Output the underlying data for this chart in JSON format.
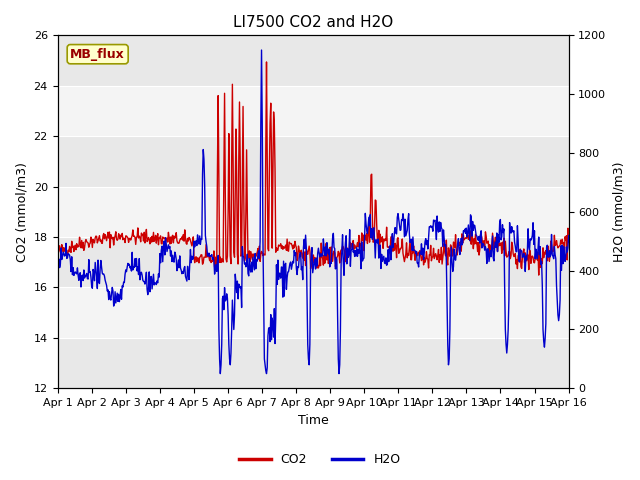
{
  "title": "LI7500 CO2 and H2O",
  "xlabel": "Time",
  "ylabel_left": "CO2 (mmol/m3)",
  "ylabel_right": "H2O (mmol/m3)",
  "co2_ylim": [
    12,
    26
  ],
  "h2o_ylim": [
    0,
    1200
  ],
  "co2_color": "#cc0000",
  "h2o_color": "#0000cc",
  "co2_linewidth": 1.0,
  "h2o_linewidth": 1.0,
  "title_fontsize": 11,
  "label_fontsize": 9,
  "tick_fontsize": 8,
  "legend_fontsize": 9,
  "mb_flux_label": "MB_flux",
  "mb_flux_facecolor": "#ffffcc",
  "mb_flux_edgecolor": "#999900",
  "mb_flux_textcolor": "#990000",
  "axes_facecolor": "#e8e8e8",
  "stripe_facecolor": "#f4f4f4",
  "xtick_labels": [
    "Apr 1",
    "Apr 2",
    "Apr 3",
    "Apr 4",
    "Apr 5",
    "Apr 6",
    "Apr 7",
    "Apr 8",
    "Apr 9",
    "Apr 10",
    "Apr 11",
    "Apr 12",
    "Apr 13",
    "Apr 14",
    "Apr 15",
    "Apr 16"
  ],
  "yticks_left": [
    12,
    14,
    16,
    18,
    20,
    22,
    24,
    26
  ],
  "yticks_right": [
    0,
    200,
    400,
    600,
    800,
    1000,
    1200
  ]
}
